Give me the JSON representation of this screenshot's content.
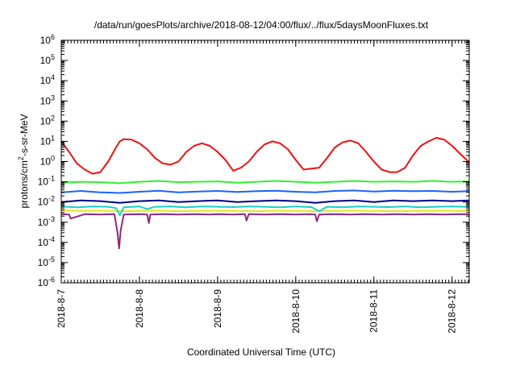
{
  "chart_data": {
    "type": "line",
    "title": "/data/run/goesPlots/archive/2018-08-12/04:00/flux/../flux/5daysMoonFluxes.txt",
    "xlabel": "Coordinated Universal Time (UTC)",
    "ylabel": {
      "base": "protons/cm",
      "sup": "2",
      "tail": "-s-sr-MeV"
    },
    "yscale": "log",
    "ylim": [
      1e-06,
      1000000.0
    ],
    "xlim": [
      0,
      5.22
    ],
    "x_origin_label": "2018-8-7",
    "grid": false,
    "legend": "none",
    "yticks": [
      {
        "value": 1e-06,
        "base": "10",
        "exp": "-6"
      },
      {
        "value": 1e-05,
        "base": "10",
        "exp": "-5"
      },
      {
        "value": 0.0001,
        "base": "10",
        "exp": "-4"
      },
      {
        "value": 0.001,
        "base": "10",
        "exp": "-3"
      },
      {
        "value": 0.01,
        "base": "10",
        "exp": "-2"
      },
      {
        "value": 0.1,
        "base": "10",
        "exp": "-1"
      },
      {
        "value": 1,
        "base": "10",
        "exp": "0"
      },
      {
        "value": 10,
        "base": "10",
        "exp": "1"
      },
      {
        "value": 100,
        "base": "10",
        "exp": "2"
      },
      {
        "value": 1000,
        "base": "10",
        "exp": "3"
      },
      {
        "value": 10000,
        "base": "10",
        "exp": "4"
      },
      {
        "value": 100000,
        "base": "10",
        "exp": "5"
      },
      {
        "value": 1000000,
        "base": "10",
        "exp": "6"
      }
    ],
    "xticks": [
      {
        "value": 0,
        "label": "2018-8-7"
      },
      {
        "value": 1,
        "label": "2018-8-8"
      },
      {
        "value": 2,
        "label": "2018-8-9"
      },
      {
        "value": 3,
        "label": "2018-8-10"
      },
      {
        "value": 4,
        "label": "2018-8-11"
      },
      {
        "value": 5,
        "label": "2018-8-12"
      }
    ],
    "series": [
      {
        "color": "#e6e61a",
        "x": [
          0,
          0.25,
          0.5,
          0.75,
          1,
          1.25,
          1.5,
          1.75,
          2,
          2.25,
          2.5,
          2.75,
          3,
          3.25,
          3.5,
          3.75,
          4,
          4.25,
          4.5,
          4.75,
          5,
          5.22
        ],
        "y": [
          0.0038,
          0.0036,
          0.0037,
          0.0035,
          0.0036,
          0.0037,
          0.0035,
          0.0036,
          0.0037,
          0.0036,
          0.0035,
          0.0037,
          0.0036,
          0.0035,
          0.0036,
          0.0037,
          0.0036,
          0.0035,
          0.0036,
          0.0037,
          0.0036,
          0.0036
        ]
      },
      {
        "color": "#1ad0c8",
        "x": [
          0,
          0.2,
          0.4,
          0.6,
          0.7,
          0.75,
          0.8,
          1,
          1.1,
          1.2,
          1.4,
          1.6,
          1.8,
          2,
          2.2,
          2.4,
          2.6,
          2.8,
          3,
          3.2,
          3.3,
          3.4,
          3.6,
          3.8,
          4,
          4.2,
          4.4,
          4.6,
          4.8,
          5,
          5.22
        ],
        "y": [
          0.006,
          0.0055,
          0.006,
          0.0058,
          0.005,
          0.0022,
          0.0055,
          0.006,
          0.0045,
          0.0058,
          0.006,
          0.0055,
          0.006,
          0.0058,
          0.0056,
          0.006,
          0.0058,
          0.0055,
          0.006,
          0.0056,
          0.0035,
          0.0058,
          0.0055,
          0.006,
          0.0058,
          0.0056,
          0.006,
          0.0055,
          0.0058,
          0.006,
          0.0057
        ]
      },
      {
        "color": "#00008b",
        "x": [
          0,
          0.25,
          0.5,
          0.75,
          1,
          1.25,
          1.5,
          1.75,
          2,
          2.25,
          2.5,
          2.75,
          3,
          3.25,
          3.5,
          3.75,
          4,
          4.25,
          4.5,
          4.75,
          5,
          5.22
        ],
        "y": [
          0.01,
          0.012,
          0.011,
          0.009,
          0.011,
          0.012,
          0.01,
          0.011,
          0.012,
          0.01,
          0.011,
          0.012,
          0.011,
          0.009,
          0.011,
          0.012,
          0.01,
          0.012,
          0.011,
          0.012,
          0.011,
          0.012
        ]
      },
      {
        "color": "#1a64ff",
        "x": [
          0,
          0.25,
          0.5,
          0.75,
          1,
          1.25,
          1.5,
          1.75,
          2,
          2.25,
          2.5,
          2.75,
          3,
          3.25,
          3.5,
          3.75,
          4,
          4.25,
          4.5,
          4.75,
          5,
          5.22
        ],
        "y": [
          0.03,
          0.035,
          0.03,
          0.028,
          0.032,
          0.036,
          0.03,
          0.033,
          0.035,
          0.031,
          0.034,
          0.036,
          0.032,
          0.03,
          0.035,
          0.037,
          0.033,
          0.036,
          0.034,
          0.035,
          0.032,
          0.034
        ]
      },
      {
        "color": "#32f032",
        "x": [
          0,
          0.25,
          0.5,
          0.75,
          1,
          1.25,
          1.5,
          1.75,
          2,
          2.25,
          2.5,
          2.75,
          3,
          3.25,
          3.5,
          3.75,
          4,
          4.25,
          4.5,
          4.75,
          5,
          5.22
        ],
        "y": [
          0.09,
          0.1,
          0.095,
          0.085,
          0.1,
          0.11,
          0.095,
          0.1,
          0.105,
          0.09,
          0.1,
          0.11,
          0.1,
          0.09,
          0.1,
          0.11,
          0.1,
          0.105,
          0.1,
          0.11,
          0.1,
          0.105
        ]
      },
      {
        "color": "#8e2a7a",
        "x": [
          0,
          0.1,
          0.12,
          0.3,
          0.5,
          0.68,
          0.72,
          0.74,
          0.76,
          0.8,
          1,
          1.1,
          1.12,
          1.14,
          1.3,
          1.5,
          1.7,
          1.9,
          2,
          2.2,
          2.35,
          2.37,
          2.4,
          2.6,
          2.8,
          3,
          3.15,
          3.25,
          3.27,
          3.3,
          3.5,
          3.7,
          3.9,
          4.1,
          4.3,
          4.5,
          4.7,
          4.9,
          5.1,
          5.22
        ],
        "y": [
          0.0025,
          0.0024,
          0.0015,
          0.0025,
          0.0024,
          0.0025,
          0.0003,
          5e-05,
          0.0004,
          0.0024,
          0.0025,
          0.0024,
          0.0009,
          0.0024,
          0.0025,
          0.0024,
          0.0025,
          0.0024,
          0.0025,
          0.0024,
          0.0025,
          0.0012,
          0.0025,
          0.0024,
          0.0025,
          0.0024,
          0.0025,
          0.0024,
          0.0011,
          0.0024,
          0.0025,
          0.0024,
          0.0025,
          0.0024,
          0.0025,
          0.0024,
          0.0025,
          0.0024,
          0.0025,
          0.0024
        ]
      },
      {
        "color": "#ee1111",
        "x": [
          0,
          0.1,
          0.2,
          0.3,
          0.4,
          0.5,
          0.6,
          0.7,
          0.75,
          0.8,
          0.9,
          1.0,
          1.1,
          1.2,
          1.3,
          1.4,
          1.5,
          1.6,
          1.7,
          1.8,
          1.9,
          2.0,
          2.1,
          2.2,
          2.3,
          2.4,
          2.5,
          2.6,
          2.7,
          2.8,
          2.9,
          3.0,
          3.1,
          3.2,
          3.3,
          3.4,
          3.5,
          3.6,
          3.7,
          3.8,
          3.9,
          4.0,
          4.1,
          4.2,
          4.3,
          4.4,
          4.5,
          4.6,
          4.7,
          4.8,
          4.9,
          5.0,
          5.1,
          5.22
        ],
        "y": [
          10,
          3,
          0.8,
          0.4,
          0.25,
          0.3,
          1,
          5,
          10,
          13,
          12,
          8,
          4,
          1.5,
          0.8,
          0.7,
          1,
          3,
          6,
          8,
          6,
          3,
          1.2,
          0.35,
          0.5,
          1,
          3,
          7,
          10,
          8,
          4,
          1.2,
          0.4,
          0.45,
          0.5,
          1.5,
          5,
          9,
          11,
          8,
          3,
          1,
          0.4,
          0.3,
          0.3,
          0.5,
          2,
          6,
          10,
          15,
          12,
          6,
          2.5,
          0.9
        ]
      }
    ]
  }
}
